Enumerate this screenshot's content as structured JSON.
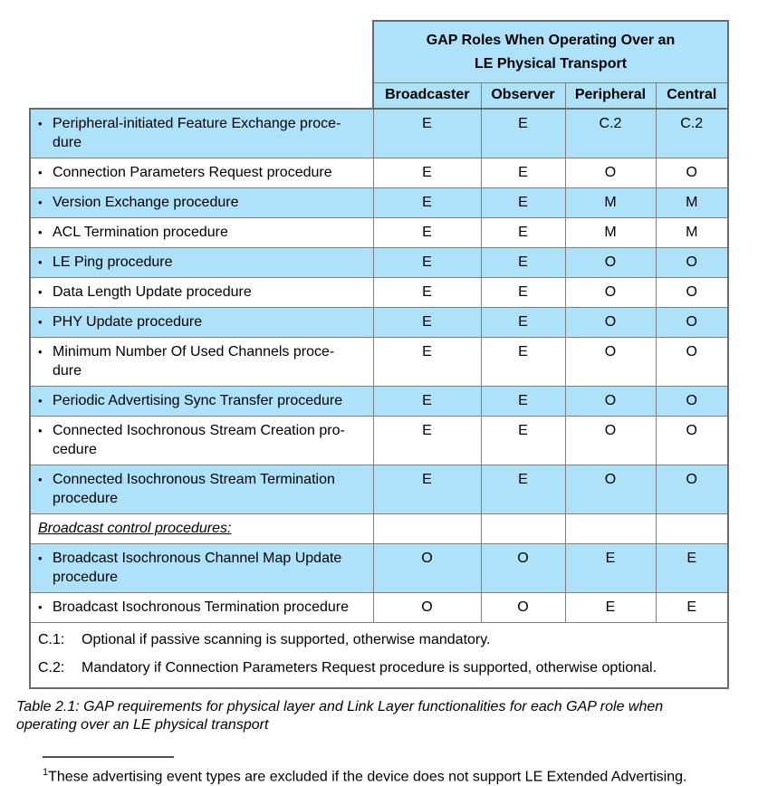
{
  "table": {
    "header": {
      "title_line1": "GAP Roles When Operating Over an",
      "title_line2": "LE Physical Transport",
      "columns": [
        "Broadcaster",
        "Observer",
        "Peripheral",
        "Central"
      ]
    },
    "rows": [
      {
        "label": "Peripheral-initiated Feature Exchange proce-\ndure",
        "bullet": true,
        "section": false,
        "shaded": true,
        "values": [
          "E",
          "E",
          "C.2",
          "C.2"
        ]
      },
      {
        "label": "Connection Parameters Request procedure",
        "bullet": true,
        "section": false,
        "shaded": false,
        "values": [
          "E",
          "E",
          "O",
          "O"
        ]
      },
      {
        "label": "Version Exchange procedure",
        "bullet": true,
        "section": false,
        "shaded": true,
        "values": [
          "E",
          "E",
          "M",
          "M"
        ]
      },
      {
        "label": "ACL Termination procedure",
        "bullet": true,
        "section": false,
        "shaded": false,
        "values": [
          "E",
          "E",
          "M",
          "M"
        ]
      },
      {
        "label": "LE Ping procedure",
        "bullet": true,
        "section": false,
        "shaded": true,
        "values": [
          "E",
          "E",
          "O",
          "O"
        ]
      },
      {
        "label": "Data Length Update procedure",
        "bullet": true,
        "section": false,
        "shaded": false,
        "values": [
          "E",
          "E",
          "O",
          "O"
        ]
      },
      {
        "label": "PHY Update procedure",
        "bullet": true,
        "section": false,
        "shaded": true,
        "values": [
          "E",
          "E",
          "O",
          "O"
        ]
      },
      {
        "label": "Minimum Number Of Used Channels proce-\ndure",
        "bullet": true,
        "section": false,
        "shaded": false,
        "values": [
          "E",
          "E",
          "O",
          "O"
        ]
      },
      {
        "label": "Periodic Advertising Sync Transfer procedure",
        "bullet": true,
        "section": false,
        "shaded": true,
        "values": [
          "E",
          "E",
          "O",
          "O"
        ]
      },
      {
        "label": "Connected Isochronous Stream Creation pro-\ncedure",
        "bullet": true,
        "section": false,
        "shaded": false,
        "values": [
          "E",
          "E",
          "O",
          "O"
        ]
      },
      {
        "label": "Connected Isochronous Stream Termination\nprocedure",
        "bullet": true,
        "section": false,
        "shaded": true,
        "values": [
          "E",
          "E",
          "O",
          "O"
        ]
      },
      {
        "label": "Broadcast control procedures:",
        "bullet": false,
        "section": true,
        "shaded": false,
        "values": [
          "",
          "",
          "",
          ""
        ]
      },
      {
        "label": "Broadcast Isochronous Channel Map Update\nprocedure",
        "bullet": true,
        "section": false,
        "shaded": true,
        "values": [
          "O",
          "O",
          "E",
          "E"
        ]
      },
      {
        "label": "Broadcast Isochronous Termination procedure",
        "bullet": true,
        "section": false,
        "shaded": false,
        "values": [
          "O",
          "O",
          "E",
          "E"
        ]
      }
    ],
    "legend": [
      {
        "key": "C.1:",
        "text": "Optional if passive scanning is supported, otherwise mandatory."
      },
      {
        "key": "C.2:",
        "text": "Mandatory if Connection Parameters Request procedure is supported, otherwise optional."
      }
    ]
  },
  "caption": "Table 2.1: GAP requirements for physical layer and Link Layer functionalities for each GAP role when\noperating over an LE physical transport",
  "footnote": {
    "marker": "1",
    "text": "These advertising event types are excluded if the device does not support LE Extended Advertising."
  }
}
